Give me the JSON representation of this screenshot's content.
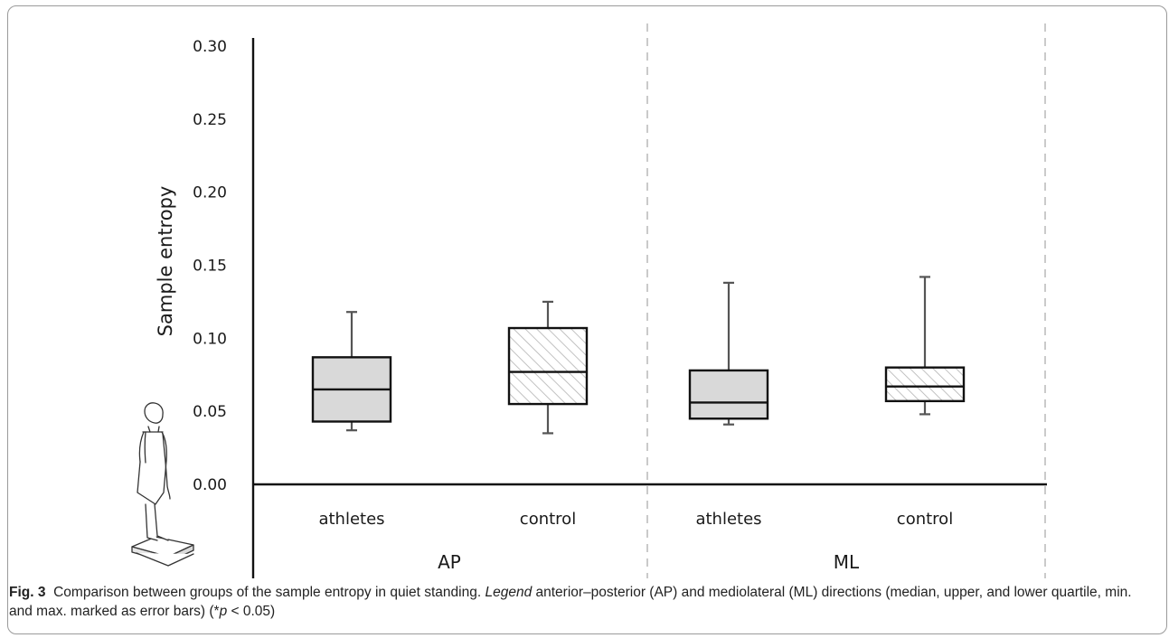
{
  "chart_data": {
    "type": "box",
    "ylabel": "Sample entropy",
    "ylim": [
      0,
      0.3
    ],
    "yticks": [
      "0.00",
      "0.05",
      "0.10",
      "0.15",
      "0.20",
      "0.25",
      "0.30"
    ],
    "grid": false,
    "groups": [
      "AP",
      "ML"
    ],
    "categories": [
      "athletes",
      "control",
      "athletes",
      "control"
    ],
    "boxes": [
      {
        "group": "AP",
        "category": "athletes",
        "min": 0.037,
        "q1": 0.043,
        "median": 0.065,
        "q3": 0.087,
        "max": 0.118,
        "fill": "solid"
      },
      {
        "group": "AP",
        "category": "control",
        "min": 0.035,
        "q1": 0.055,
        "median": 0.077,
        "q3": 0.107,
        "max": 0.125,
        "fill": "hatched"
      },
      {
        "group": "ML",
        "category": "athletes",
        "min": 0.041,
        "q1": 0.045,
        "median": 0.056,
        "q3": 0.078,
        "max": 0.138,
        "fill": "solid"
      },
      {
        "group": "ML",
        "category": "control",
        "min": 0.048,
        "q1": 0.057,
        "median": 0.067,
        "q3": 0.08,
        "max": 0.142,
        "fill": "hatched"
      }
    ]
  },
  "colors": {
    "box_fill": "#d9d9d9",
    "hatch": "#b3b3b3",
    "axis": "#111111",
    "divider": "#bdbdbd",
    "whisker": "#555555"
  },
  "icons": [
    "standing-person-on-balance-platform-icon"
  ],
  "caption": {
    "label": "Fig. 3",
    "text_1": "Comparison between groups of the sample entropy in quiet standing. ",
    "legend_word": "Legend",
    "text_2": " anterior–posterior (AP) and mediolateral (ML) directions (median, upper, and lower quartile, min. and max. marked as error bars) (*",
    "p_symbol": "p",
    "text_3": " < 0.05)"
  }
}
